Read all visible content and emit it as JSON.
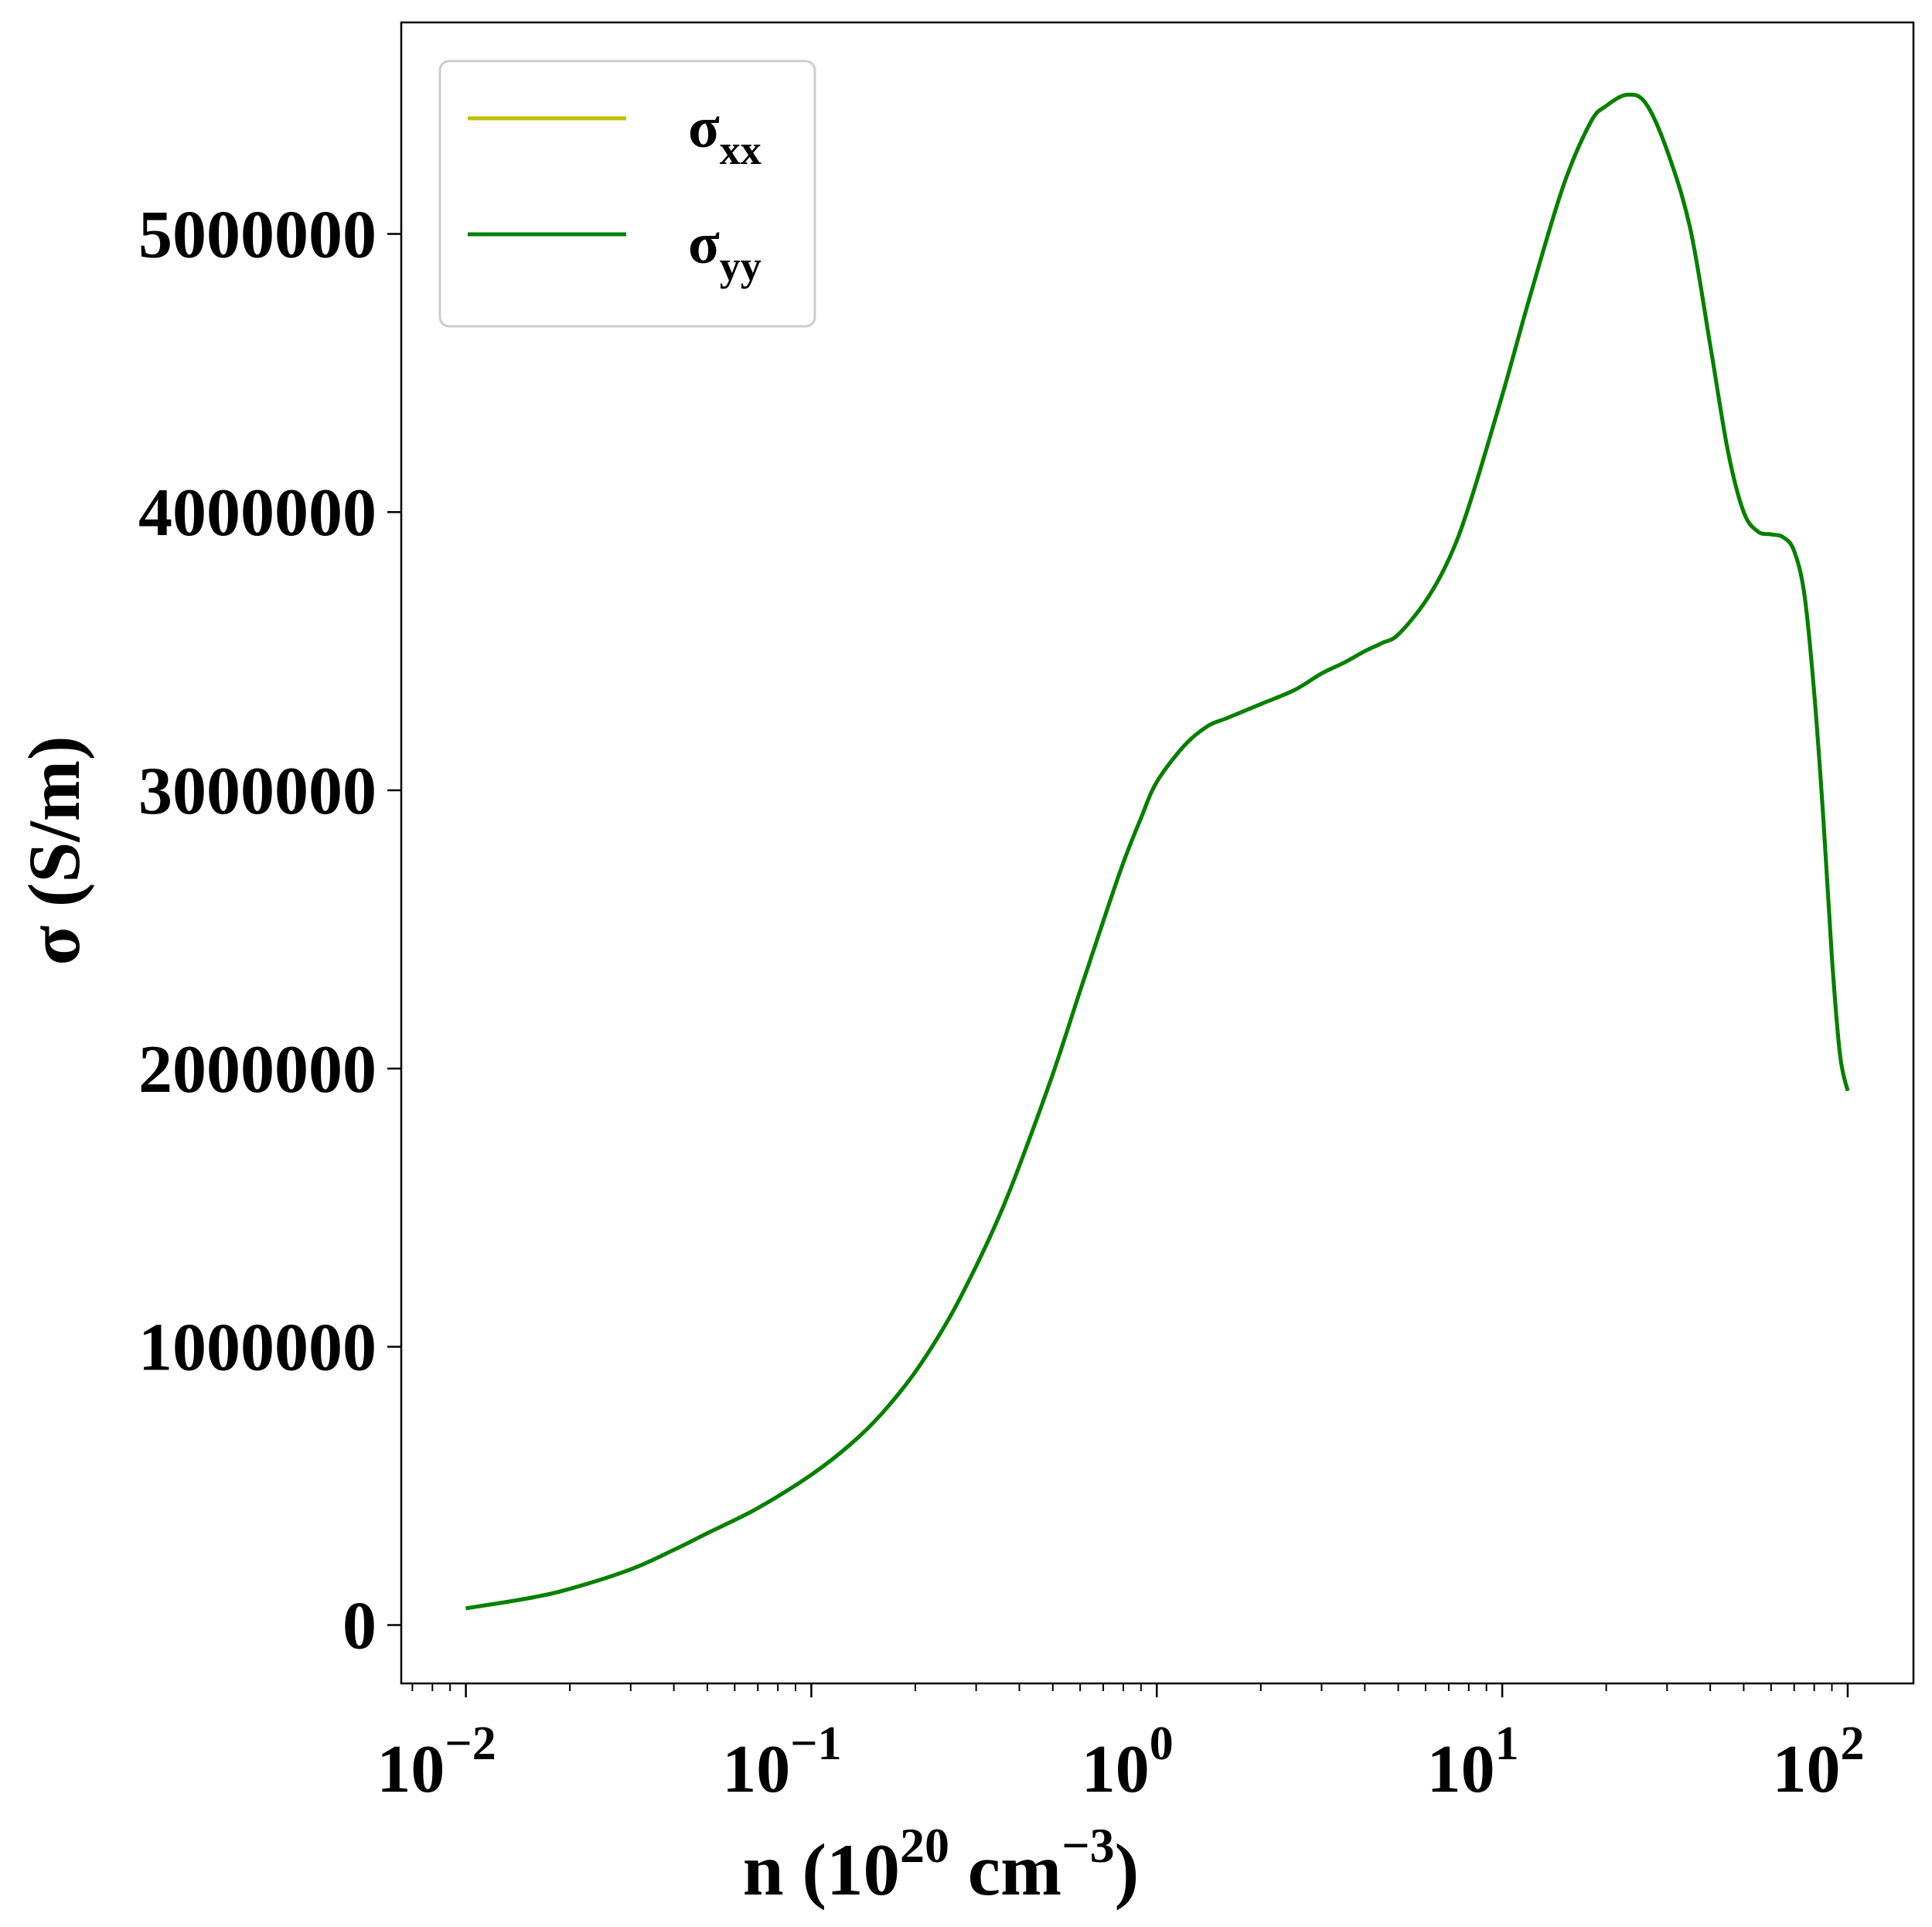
{
  "chart_data": {
    "type": "line",
    "title": "",
    "xlabel": {
      "base": "n (10",
      "exp1": "20",
      "mid": " cm",
      "exp2": "−3",
      "end": ")"
    },
    "ylabel": "σ (S/m)",
    "xscale": "log",
    "xlim": [
      0.0065,
      155
    ],
    "ylim": [
      -210000,
      5760000
    ],
    "grid": false,
    "legend_position": "top-left",
    "x_ticks": [
      {
        "value": 0.01,
        "base": "10",
        "exp": "−2"
      },
      {
        "value": 0.1,
        "base": "10",
        "exp": "−1"
      },
      {
        "value": 1,
        "base": "10",
        "exp": "0"
      },
      {
        "value": 10,
        "base": "10",
        "exp": "1"
      },
      {
        "value": 100,
        "base": "10",
        "exp": "2"
      }
    ],
    "y_ticks": [
      {
        "value": 0,
        "label": "0"
      },
      {
        "value": 1000000,
        "label": "1000000"
      },
      {
        "value": 2000000,
        "label": "2000000"
      },
      {
        "value": 3000000,
        "label": "3000000"
      },
      {
        "value": 4000000,
        "label": "4000000"
      },
      {
        "value": 5000000,
        "label": "5000000"
      }
    ],
    "x": [
      0.01,
      0.015,
      0.02,
      0.03,
      0.04,
      0.05,
      0.07,
      0.1,
      0.13,
      0.16,
      0.2,
      0.25,
      0.3,
      0.35,
      0.4,
      0.5,
      0.6,
      0.7,
      0.8,
      0.9,
      1.0,
      1.2,
      1.4,
      1.6,
      2.0,
      2.5,
      3.0,
      3.5,
      4.0,
      4.5,
      5.0,
      6.0,
      7.0,
      8.0,
      10,
      12,
      15,
      18,
      20,
      23,
      26,
      30,
      35,
      40,
      45,
      50,
      55,
      60,
      65,
      70,
      75,
      80,
      85,
      90,
      95,
      100
    ],
    "series": [
      {
        "name": "σxx",
        "sym": "σ",
        "sub": "xx",
        "color": "#bfbf00",
        "values": [
          60000,
          95000,
          130000,
          200000,
          270000,
          330000,
          420000,
          540000,
          650000,
          760000,
          910000,
          1100000,
          1290000,
          1470000,
          1650000,
          1980000,
          2280000,
          2530000,
          2740000,
          2900000,
          3030000,
          3160000,
          3230000,
          3260000,
          3310000,
          3360000,
          3420000,
          3460000,
          3500000,
          3530000,
          3560000,
          3680000,
          3830000,
          4020000,
          4420000,
          4770000,
          5170000,
          5400000,
          5460000,
          5500000,
          5470000,
          5300000,
          5020000,
          4600000,
          4220000,
          4000000,
          3930000,
          3920000,
          3910000,
          3860000,
          3700000,
          3350000,
          2900000,
          2400000,
          2050000,
          1920000
        ]
      },
      {
        "name": "σyy",
        "sym": "σ",
        "sub": "yy",
        "color": "#008000",
        "values": [
          60000,
          95000,
          130000,
          200000,
          270000,
          330000,
          420000,
          540000,
          650000,
          760000,
          910000,
          1100000,
          1290000,
          1470000,
          1650000,
          1980000,
          2280000,
          2530000,
          2740000,
          2900000,
          3030000,
          3160000,
          3230000,
          3260000,
          3310000,
          3360000,
          3420000,
          3460000,
          3500000,
          3530000,
          3560000,
          3680000,
          3830000,
          4020000,
          4420000,
          4770000,
          5170000,
          5400000,
          5460000,
          5500000,
          5470000,
          5300000,
          5020000,
          4600000,
          4220000,
          4000000,
          3930000,
          3920000,
          3910000,
          3860000,
          3700000,
          3350000,
          2900000,
          2400000,
          2050000,
          1920000
        ]
      }
    ]
  }
}
